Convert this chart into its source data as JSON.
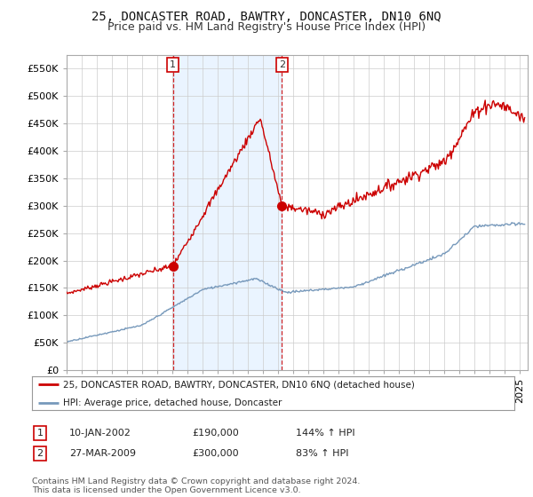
{
  "title": "25, DONCASTER ROAD, BAWTRY, DONCASTER, DN10 6NQ",
  "subtitle": "Price paid vs. HM Land Registry's House Price Index (HPI)",
  "ylim": [
    0,
    575000
  ],
  "yticks": [
    0,
    50000,
    100000,
    150000,
    200000,
    250000,
    300000,
    350000,
    400000,
    450000,
    500000,
    550000
  ],
  "ytick_labels": [
    "£0",
    "£50K",
    "£100K",
    "£150K",
    "£200K",
    "£250K",
    "£300K",
    "£350K",
    "£400K",
    "£450K",
    "£500K",
    "£550K"
  ],
  "xlim_start": 1995.0,
  "xlim_end": 2025.5,
  "legend_line1": "25, DONCASTER ROAD, BAWTRY, DONCASTER, DN10 6NQ (detached house)",
  "legend_line2": "HPI: Average price, detached house, Doncaster",
  "line1_color": "#cc0000",
  "line2_color": "#7799bb",
  "annotation1_label": "1",
  "annotation1_date": "10-JAN-2002",
  "annotation1_price": "£190,000",
  "annotation1_hpi": "144% ↑ HPI",
  "annotation2_label": "2",
  "annotation2_date": "27-MAR-2009",
  "annotation2_price": "£300,000",
  "annotation2_hpi": "83% ↑ HPI",
  "footer": "Contains HM Land Registry data © Crown copyright and database right 2024.\nThis data is licensed under the Open Government Licence v3.0.",
  "bg_color": "#ffffff",
  "grid_color": "#cccccc",
  "title_fontsize": 10,
  "subtitle_fontsize": 9,
  "tick_fontsize": 8,
  "vline1_x": 2002.04,
  "vline2_x": 2009.24,
  "point1_x": 2002.04,
  "point1_y": 190000,
  "point2_x": 2009.24,
  "point2_y": 300000,
  "vspan_color": "#ddeeff",
  "vspan_alpha": 0.6
}
